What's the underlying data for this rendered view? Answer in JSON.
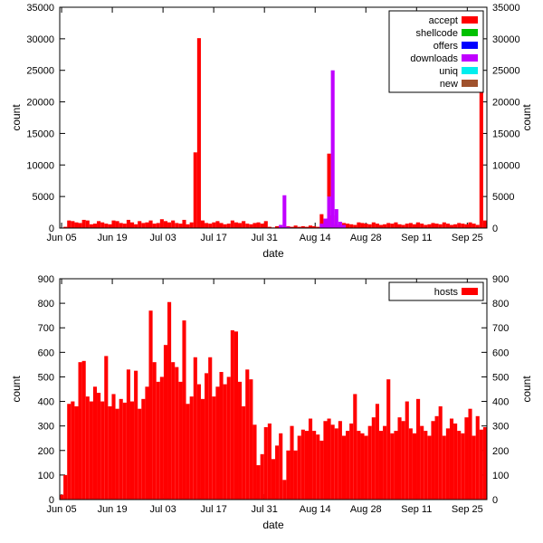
{
  "top_chart": {
    "type": "bar",
    "xlabel": "date",
    "ylabel_left": "count",
    "ylabel_right": "count",
    "ylim": [
      0,
      35000
    ],
    "ytick_step": 5000,
    "x_tick_labels": [
      "Jun 05",
      "Jun 19",
      "Jul 03",
      "Jul 17",
      "Jul 31",
      "Aug 14",
      "Aug 28",
      "Sep 11",
      "Sep 25"
    ],
    "background_color": "#ffffff",
    "border_color": "#000000",
    "legend": [
      {
        "label": "accept",
        "color": "#ff0000"
      },
      {
        "label": "shellcode",
        "color": "#00c000"
      },
      {
        "label": "offers",
        "color": "#0000ff"
      },
      {
        "label": "downloads",
        "color": "#c000ff"
      },
      {
        "label": "uniq",
        "color": "#00eeee"
      },
      {
        "label": "new",
        "color": "#a0522d"
      }
    ],
    "series": {
      "accept": {
        "color": "#ff0000",
        "values": [
          80,
          200,
          1200,
          1100,
          900,
          800,
          1300,
          1200,
          600,
          700,
          1100,
          900,
          700,
          600,
          1200,
          1100,
          800,
          700,
          1300,
          900,
          600,
          1100,
          800,
          900,
          1200,
          700,
          800,
          1400,
          1100,
          900,
          1200,
          800,
          700,
          1300,
          600,
          900,
          12000,
          30100,
          1200,
          800,
          700,
          900,
          1100,
          800,
          600,
          700,
          1200,
          900,
          800,
          1100,
          700,
          600,
          800,
          900,
          700,
          1100,
          200,
          100,
          300,
          200,
          100,
          300,
          200,
          400,
          200,
          300,
          200,
          400,
          300,
          200,
          2200,
          1200,
          11800,
          2000,
          500,
          400,
          800,
          700,
          600,
          500,
          900,
          800,
          700,
          600,
          900,
          700,
          500,
          600,
          800,
          700,
          900,
          600,
          500,
          700,
          800,
          600,
          900,
          700,
          500,
          600,
          800,
          700,
          600,
          900,
          700,
          500,
          600,
          800,
          700,
          600,
          900,
          700,
          500,
          26500,
          1200
        ]
      },
      "downloads": {
        "color": "#c000ff",
        "values": [
          0,
          0,
          0,
          0,
          0,
          0,
          0,
          0,
          0,
          0,
          0,
          0,
          0,
          0,
          0,
          0,
          0,
          0,
          0,
          0,
          0,
          0,
          0,
          0,
          0,
          0,
          0,
          0,
          0,
          0,
          0,
          0,
          0,
          0,
          0,
          0,
          0,
          0,
          0,
          0,
          0,
          0,
          0,
          0,
          0,
          0,
          0,
          0,
          0,
          0,
          0,
          0,
          0,
          0,
          0,
          0,
          0,
          0,
          0,
          500,
          5200,
          200,
          0,
          0,
          0,
          0,
          0,
          0,
          0,
          0,
          700,
          1500,
          5000,
          25000,
          3000,
          1000,
          500,
          0,
          0,
          0,
          0,
          0,
          0,
          0,
          0,
          0,
          0,
          0,
          0,
          0,
          0,
          0,
          0,
          0,
          0,
          0,
          0,
          0,
          0,
          0,
          0,
          0,
          0,
          0,
          0,
          0,
          0,
          0,
          0,
          0,
          0,
          0,
          0,
          0,
          0
        ]
      }
    }
  },
  "bottom_chart": {
    "type": "bar",
    "xlabel": "date",
    "ylabel_left": "count",
    "ylabel_right": "count",
    "ylim": [
      0,
      900
    ],
    "ytick_step": 100,
    "x_tick_labels": [
      "Jun 05",
      "Jun 19",
      "Jul 03",
      "Jul 17",
      "Jul 31",
      "Aug 14",
      "Aug 28",
      "Sep 11",
      "Sep 25"
    ],
    "background_color": "#ffffff",
    "border_color": "#000000",
    "legend": [
      {
        "label": "hosts",
        "color": "#ff0000"
      }
    ],
    "series": {
      "hosts": {
        "color": "#ff0000",
        "values": [
          20,
          100,
          390,
          400,
          380,
          560,
          565,
          420,
          400,
          460,
          435,
          400,
          585,
          380,
          430,
          370,
          410,
          395,
          530,
          400,
          525,
          370,
          410,
          460,
          770,
          560,
          480,
          500,
          630,
          805,
          560,
          540,
          480,
          730,
          390,
          420,
          580,
          470,
          410,
          515,
          580,
          420,
          460,
          520,
          470,
          500,
          690,
          685,
          480,
          380,
          530,
          490,
          305,
          140,
          185,
          295,
          310,
          165,
          220,
          270,
          80,
          200,
          300,
          200,
          260,
          285,
          280,
          330,
          280,
          265,
          240,
          320,
          330,
          305,
          290,
          320,
          260,
          280,
          310,
          430,
          280,
          270,
          260,
          300,
          335,
          390,
          280,
          300,
          490,
          270,
          280,
          335,
          320,
          400,
          290,
          270,
          410,
          300,
          280,
          260,
          320,
          340,
          380,
          260,
          290,
          330,
          310,
          280,
          270,
          335,
          370,
          260,
          340,
          285,
          295
        ]
      }
    }
  }
}
